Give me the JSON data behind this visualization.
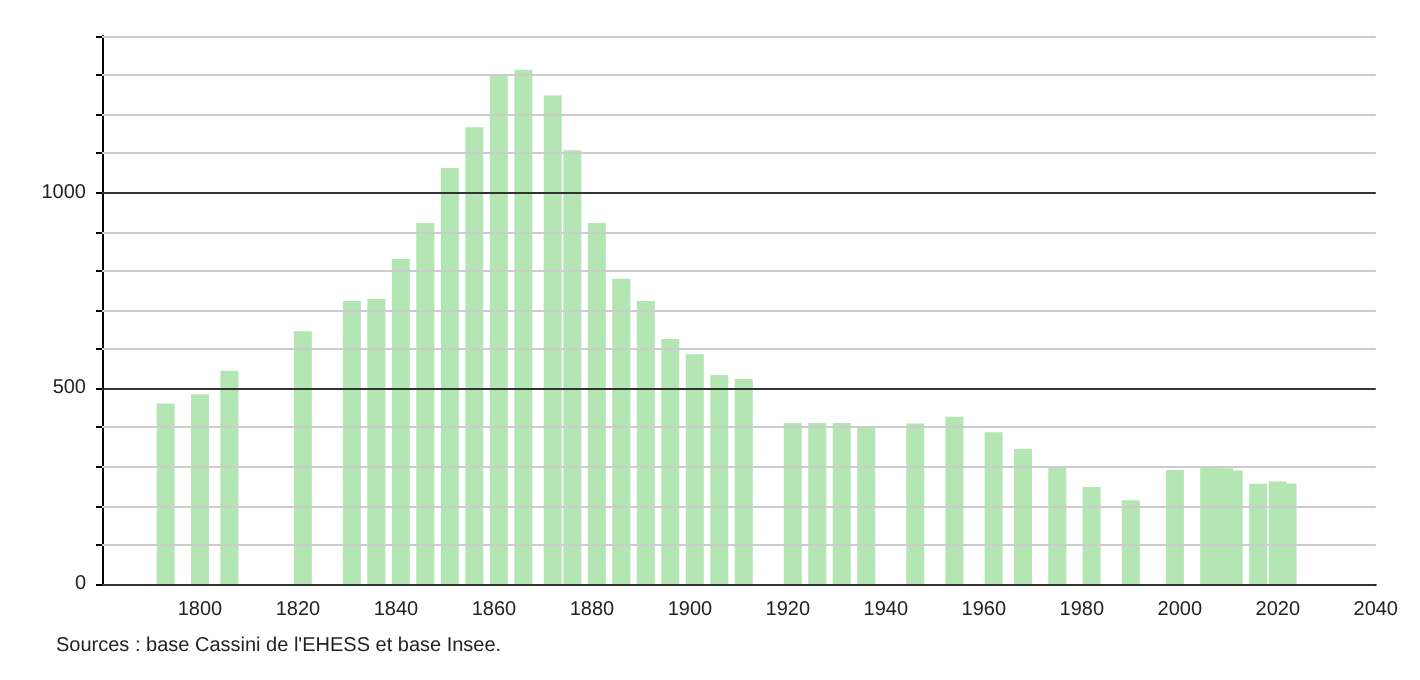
{
  "chart_data": {
    "type": "bar",
    "x": [
      1793,
      1800,
      1806,
      1821,
      1831,
      1836,
      1841,
      1846,
      1851,
      1856,
      1861,
      1866,
      1872,
      1876,
      1881,
      1886,
      1891,
      1896,
      1901,
      1906,
      1911,
      1921,
      1926,
      1931,
      1936,
      1946,
      1954,
      1962,
      1968,
      1975,
      1982,
      1990,
      1999,
      2006,
      2009,
      2011,
      2016,
      2020,
      2022
    ],
    "values": [
      461,
      485,
      545,
      646,
      723,
      728,
      830,
      922,
      1063,
      1167,
      1298,
      1314,
      1248,
      1108,
      922,
      780,
      723,
      626,
      587,
      534,
      524,
      411,
      411,
      411,
      401,
      410,
      427,
      388,
      345,
      299,
      248,
      214,
      291,
      298,
      296,
      290,
      256,
      262,
      257
    ],
    "color": "#b3e6b3",
    "xlim": [
      1780,
      2040
    ],
    "xticks": [
      1800,
      1820,
      1840,
      1860,
      1880,
      1900,
      1920,
      1940,
      1960,
      1980,
      2000,
      2020,
      2040
    ],
    "ylim": [
      0,
      1400
    ],
    "yticks": [
      0,
      {
        "value": 100,
        "label": null
      },
      {
        "value": 200,
        "label": null
      },
      {
        "value": 300,
        "label": null
      },
      {
        "value": 400,
        "label": null
      },
      500,
      {
        "value": 600,
        "label": null
      },
      {
        "value": 700,
        "label": null
      },
      {
        "value": 800,
        "label": null
      },
      {
        "value": 900,
        "label": null
      },
      1000,
      {
        "value": 1100,
        "label": null
      },
      {
        "value": 1200,
        "label": null
      },
      {
        "value": 1300,
        "label": null
      },
      {
        "value": 1400,
        "label": null
      }
    ],
    "grid": "y",
    "annotations": [
      "Sources : base Cassini de l'EHESS et base Insee."
    ]
  }
}
